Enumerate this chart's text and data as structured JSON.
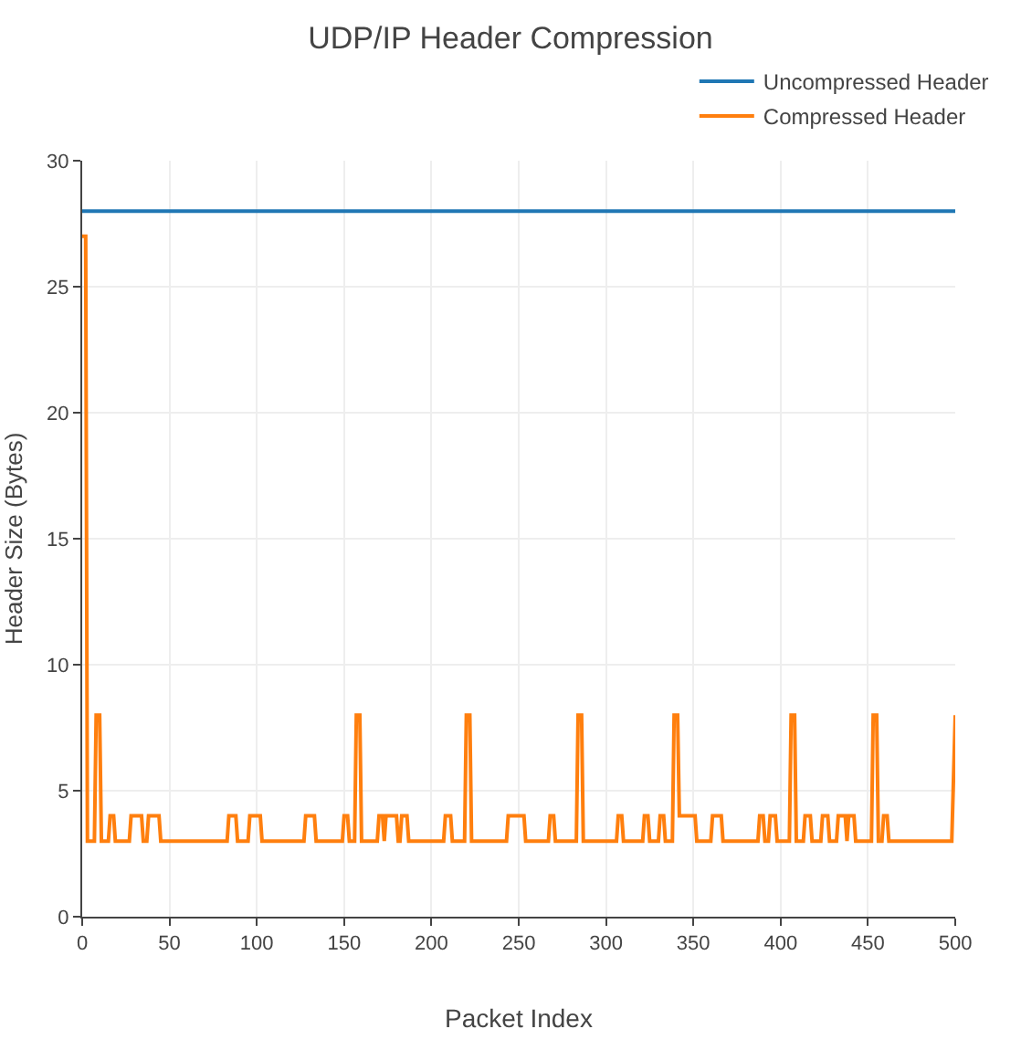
{
  "chart_data": {
    "type": "line",
    "title": "UDP/IP Header Compression",
    "xlabel": "Packet Index",
    "ylabel": "Header Size (Bytes)",
    "xlim": [
      0,
      500
    ],
    "xticks": [
      0,
      50,
      100,
      150,
      200,
      250,
      300,
      350,
      400,
      450,
      500
    ],
    "ylim": [
      0,
      30
    ],
    "yticks": [
      0,
      5,
      10,
      15,
      20,
      25,
      30
    ],
    "grid": true,
    "legend": "top right",
    "line_style": "solid",
    "marker": "none",
    "series": [
      {
        "name": "Uncompressed Header",
        "color": "#1f77b4",
        "x": [
          0,
          500
        ],
        "values": [
          28,
          28
        ]
      },
      {
        "name": "Compressed Header",
        "color": "#ff7f0e",
        "x": [
          0,
          2,
          3,
          7,
          8,
          10,
          11,
          15,
          16,
          18,
          19,
          27,
          28,
          34,
          35,
          37,
          38,
          44,
          45,
          83,
          84,
          88,
          89,
          95,
          96,
          102,
          103,
          127,
          128,
          133,
          134,
          149,
          150,
          152,
          153,
          156,
          157,
          159,
          160,
          169,
          170,
          172,
          173,
          174,
          180,
          181,
          182,
          183,
          186,
          187,
          207,
          208,
          211,
          212,
          219,
          220,
          222,
          223,
          243,
          244,
          253,
          254,
          267,
          268,
          270,
          271,
          283,
          284,
          286,
          287,
          306,
          307,
          309,
          310,
          321,
          322,
          324,
          325,
          330,
          331,
          333,
          334,
          338,
          339,
          341,
          342,
          351,
          352,
          360,
          361,
          366,
          367,
          387,
          388,
          390,
          391,
          393,
          394,
          397,
          398,
          405,
          406,
          408,
          409,
          413,
          414,
          417,
          418,
          423,
          424,
          427,
          428,
          432,
          433,
          437,
          438,
          439,
          442,
          443,
          452,
          453,
          455,
          456,
          458,
          459,
          461,
          462,
          498,
          500
        ],
        "values": [
          27,
          27,
          3,
          3,
          8,
          8,
          3,
          3,
          4,
          4,
          3,
          3,
          4,
          4,
          3,
          3,
          4,
          4,
          3,
          3,
          4,
          4,
          3,
          3,
          4,
          4,
          3,
          3,
          4,
          4,
          3,
          3,
          4,
          4,
          3,
          3,
          8,
          8,
          3,
          3,
          4,
          4,
          3,
          4,
          4,
          3,
          3,
          4,
          4,
          3,
          3,
          4,
          4,
          3,
          3,
          8,
          8,
          3,
          3,
          4,
          4,
          3,
          3,
          4,
          4,
          3,
          3,
          8,
          8,
          3,
          3,
          4,
          4,
          3,
          3,
          4,
          4,
          3,
          3,
          4,
          4,
          3,
          3,
          8,
          8,
          4,
          4,
          3,
          3,
          4,
          4,
          3,
          3,
          4,
          4,
          3,
          3,
          4,
          4,
          3,
          3,
          8,
          8,
          3,
          3,
          4,
          4,
          3,
          3,
          4,
          4,
          3,
          3,
          4,
          4,
          3,
          4,
          4,
          3,
          3,
          8,
          8,
          3,
          3,
          4,
          4,
          3,
          3,
          8
        ]
      }
    ]
  }
}
